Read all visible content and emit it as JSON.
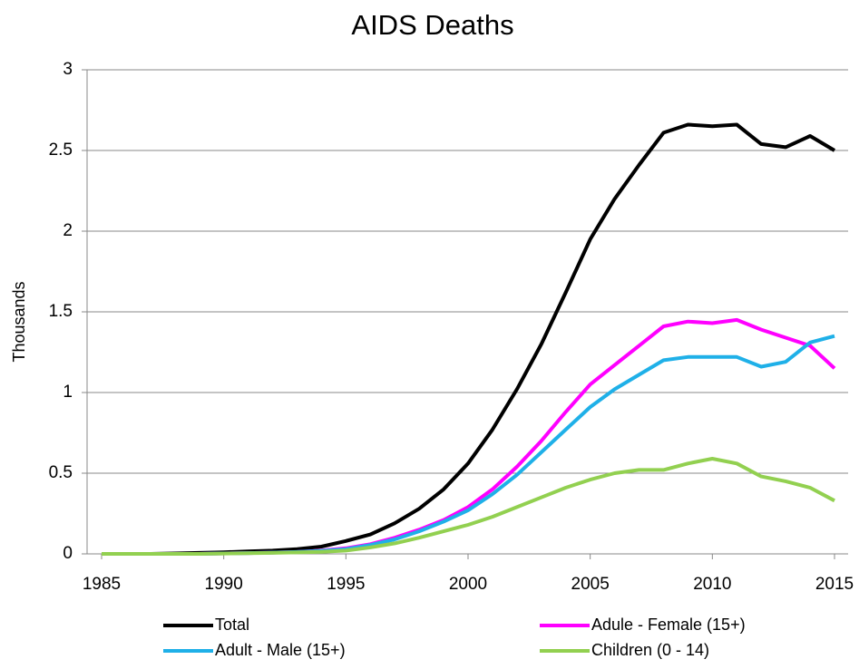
{
  "chart_data": {
    "type": "line",
    "title": "AIDS Deaths",
    "y_label": "Thousands",
    "x": [
      1985,
      1986,
      1987,
      1988,
      1989,
      1990,
      1991,
      1992,
      1993,
      1994,
      1995,
      1996,
      1997,
      1998,
      1999,
      2000,
      2001,
      2002,
      2003,
      2004,
      2005,
      2006,
      2007,
      2008,
      2009,
      2010,
      2011,
      2012,
      2013,
      2014,
      2015
    ],
    "xlim": [
      1985,
      2015
    ],
    "xticks": [
      1985,
      1990,
      1995,
      2000,
      2005,
      2010,
      2015
    ],
    "ylim": [
      0,
      3
    ],
    "yticks": [
      0,
      0.5,
      1,
      1.5,
      2,
      2.5,
      3
    ],
    "grid": true,
    "series": [
      {
        "name": "Total",
        "color": "#000000",
        "values": [
          0,
          0,
          0,
          0.003,
          0.006,
          0.01,
          0.015,
          0.02,
          0.03,
          0.045,
          0.08,
          0.12,
          0.19,
          0.28,
          0.4,
          0.56,
          0.77,
          1.02,
          1.3,
          1.62,
          1.95,
          2.2,
          2.41,
          2.61,
          2.66,
          2.65,
          2.66,
          2.54,
          2.52,
          2.59,
          2.5
        ]
      },
      {
        "name": "Adule - Female (15+)",
        "color": "#ff00ff",
        "values": [
          0,
          0,
          0,
          0,
          0,
          0.003,
          0.005,
          0.008,
          0.012,
          0.02,
          0.035,
          0.06,
          0.1,
          0.15,
          0.21,
          0.29,
          0.4,
          0.54,
          0.7,
          0.88,
          1.05,
          1.17,
          1.29,
          1.41,
          1.44,
          1.43,
          1.45,
          1.39,
          1.34,
          1.29,
          1.15
        ]
      },
      {
        "name": "Adult - Male (15+)",
        "color": "#1fb0e8",
        "values": [
          0,
          0,
          0,
          0,
          0,
          0.003,
          0.005,
          0.008,
          0.012,
          0.018,
          0.03,
          0.055,
          0.09,
          0.14,
          0.2,
          0.27,
          0.37,
          0.49,
          0.63,
          0.77,
          0.91,
          1.02,
          1.11,
          1.2,
          1.22,
          1.22,
          1.22,
          1.16,
          1.19,
          1.31,
          1.35
        ]
      },
      {
        "name": "Children (0 - 14)",
        "color": "#92d050",
        "values": [
          0,
          0,
          0,
          0,
          0,
          0.002,
          0.004,
          0.006,
          0.009,
          0.013,
          0.02,
          0.04,
          0.065,
          0.1,
          0.14,
          0.18,
          0.23,
          0.29,
          0.35,
          0.41,
          0.46,
          0.5,
          0.52,
          0.52,
          0.56,
          0.59,
          0.56,
          0.48,
          0.45,
          0.41,
          0.33
        ]
      }
    ]
  }
}
